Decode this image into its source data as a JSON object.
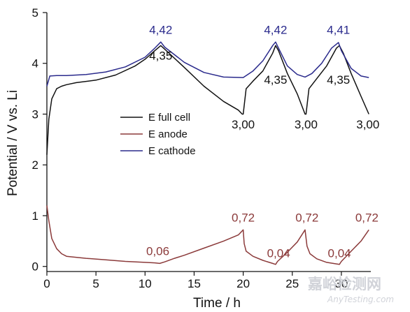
{
  "chart_data": {
    "type": "line",
    "xlabel": "Time / h",
    "ylabel": "Potential / V vs. Li",
    "xlim": [
      0,
      33
    ],
    "ylim": [
      -0.1,
      5
    ],
    "xticks": [
      "0",
      "5",
      "10",
      "15",
      "20",
      "25",
      "30"
    ],
    "yticks": [
      "0",
      "1",
      "2",
      "3",
      "4",
      "5"
    ],
    "grid": false,
    "legend_position": "center-left",
    "series": [
      {
        "name": "E full cell",
        "color": "#111111",
        "x": [
          0,
          0.2,
          0.5,
          1,
          1.5,
          2,
          3,
          5,
          7,
          9,
          10,
          11,
          11.6,
          12,
          14,
          16,
          18,
          19.5,
          19.9,
          20,
          20.3,
          21,
          22,
          23,
          23.3,
          23.6,
          24.5,
          25.5,
          26.3,
          26.4,
          26.7,
          27.5,
          28.5,
          29.5,
          29.8,
          30.2,
          31,
          32,
          32.8
        ],
        "y": [
          2.2,
          2.9,
          3.3,
          3.5,
          3.55,
          3.58,
          3.62,
          3.67,
          3.77,
          3.95,
          4.08,
          4.25,
          4.35,
          4.28,
          3.92,
          3.55,
          3.25,
          3.08,
          3.0,
          3.0,
          3.5,
          3.65,
          3.85,
          4.2,
          4.35,
          4.25,
          3.8,
          3.4,
          3.0,
          3.0,
          3.5,
          3.7,
          3.95,
          4.3,
          4.35,
          4.2,
          3.8,
          3.35,
          3.0
        ]
      },
      {
        "name": "E anode",
        "color": "#8b3a3a",
        "x": [
          0,
          0.2,
          0.5,
          1,
          1.5,
          2,
          4,
          6,
          8,
          10,
          11,
          11.5,
          12,
          13,
          14,
          16,
          18,
          19.5,
          20,
          20.1,
          20.3,
          21,
          22,
          23,
          23.3,
          23.5,
          24.5,
          25.5,
          26.3,
          26.5,
          26.8,
          27.5,
          28.5,
          29.5,
          29.8,
          30,
          31,
          32,
          32.8
        ],
        "y": [
          1.2,
          0.9,
          0.55,
          0.35,
          0.25,
          0.2,
          0.16,
          0.13,
          0.1,
          0.08,
          0.07,
          0.06,
          0.09,
          0.16,
          0.22,
          0.36,
          0.5,
          0.62,
          0.72,
          0.45,
          0.3,
          0.2,
          0.12,
          0.06,
          0.04,
          0.1,
          0.28,
          0.48,
          0.72,
          0.4,
          0.25,
          0.15,
          0.08,
          0.05,
          0.04,
          0.1,
          0.3,
          0.5,
          0.72
        ]
      },
      {
        "name": "E cathode",
        "color": "#2a2a8c",
        "x": [
          0,
          0.3,
          1,
          2,
          4,
          6,
          8,
          10,
          11,
          11.6,
          12,
          14,
          16,
          18,
          20,
          21,
          22,
          23,
          23.3,
          23.6,
          24.5,
          25.5,
          26.3,
          27,
          28,
          29,
          29.7,
          30,
          31,
          32,
          32.8
        ],
        "y": [
          3.55,
          3.75,
          3.76,
          3.76,
          3.78,
          3.83,
          3.93,
          4.12,
          4.3,
          4.42,
          4.32,
          4.02,
          3.82,
          3.73,
          3.72,
          3.85,
          4.05,
          4.35,
          4.42,
          4.3,
          3.95,
          3.78,
          3.73,
          3.8,
          4.0,
          4.3,
          4.41,
          4.25,
          3.9,
          3.75,
          3.72
        ]
      }
    ],
    "annotations": [
      {
        "text": "4,42",
        "x": 11.6,
        "y": 4.58,
        "color": "#2a2a8c"
      },
      {
        "text": "4,35",
        "x": 11.6,
        "y": 4.07,
        "color": "#111111"
      },
      {
        "text": "3,00",
        "x": 20.0,
        "y": 2.72,
        "color": "#111111"
      },
      {
        "text": "4,42",
        "x": 23.3,
        "y": 4.58,
        "color": "#2a2a8c"
      },
      {
        "text": "4,35",
        "x": 23.3,
        "y": 3.6,
        "color": "#111111"
      },
      {
        "text": "3,00",
        "x": 26.4,
        "y": 2.72,
        "color": "#111111"
      },
      {
        "text": "4,41",
        "x": 29.7,
        "y": 4.58,
        "color": "#2a2a8c"
      },
      {
        "text": "4,35",
        "x": 29.7,
        "y": 3.6,
        "color": "#111111"
      },
      {
        "text": "3,00",
        "x": 32.7,
        "y": 2.72,
        "color": "#111111"
      },
      {
        "text": "0,06",
        "x": 11.3,
        "y": 0.22,
        "color": "#8b3a3a"
      },
      {
        "text": "0,72",
        "x": 20.0,
        "y": 0.88,
        "color": "#8b3a3a"
      },
      {
        "text": "0,04",
        "x": 23.6,
        "y": 0.18,
        "color": "#8b3a3a"
      },
      {
        "text": "0,72",
        "x": 26.5,
        "y": 0.88,
        "color": "#8b3a3a"
      },
      {
        "text": "0,04",
        "x": 29.8,
        "y": 0.18,
        "color": "#8b3a3a"
      },
      {
        "text": "0,72",
        "x": 32.6,
        "y": 0.88,
        "color": "#8b3a3a"
      }
    ],
    "watermark": {
      "main": "嘉峪检测网",
      "sub": "AnyTesting.com"
    }
  }
}
